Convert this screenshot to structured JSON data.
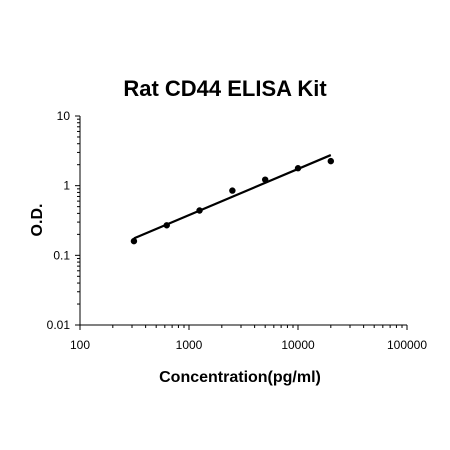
{
  "chart_data": {
    "type": "scatter",
    "title": "Rat CD44 ELISA Kit",
    "xlabel": "Concentration(pg/ml)",
    "ylabel": "O.D.",
    "xscale": "log",
    "yscale": "log",
    "xlim": [
      100,
      100000
    ],
    "ylim": [
      0.01,
      10
    ],
    "x_ticks": [
      100,
      1000,
      10000,
      100000
    ],
    "x_tick_labels": [
      "100",
      "1000",
      "10000",
      "100000"
    ],
    "y_ticks": [
      0.01,
      0.1,
      1,
      10
    ],
    "y_tick_labels": [
      "0.01",
      "0.1",
      "1",
      "10"
    ],
    "grid": false,
    "legend": "none",
    "series": [
      {
        "x": [
          312.5,
          625,
          1250,
          2500,
          5000,
          10000,
          20000
        ],
        "y": [
          0.16,
          0.27,
          0.44,
          0.85,
          1.22,
          1.78,
          2.25
        ]
      }
    ],
    "fit_line": {
      "x": [
        312.5,
        20000
      ],
      "y": [
        0.175,
        2.75
      ]
    },
    "colors": {
      "points": "#000000",
      "line": "#000000",
      "axes": "#000000"
    }
  }
}
